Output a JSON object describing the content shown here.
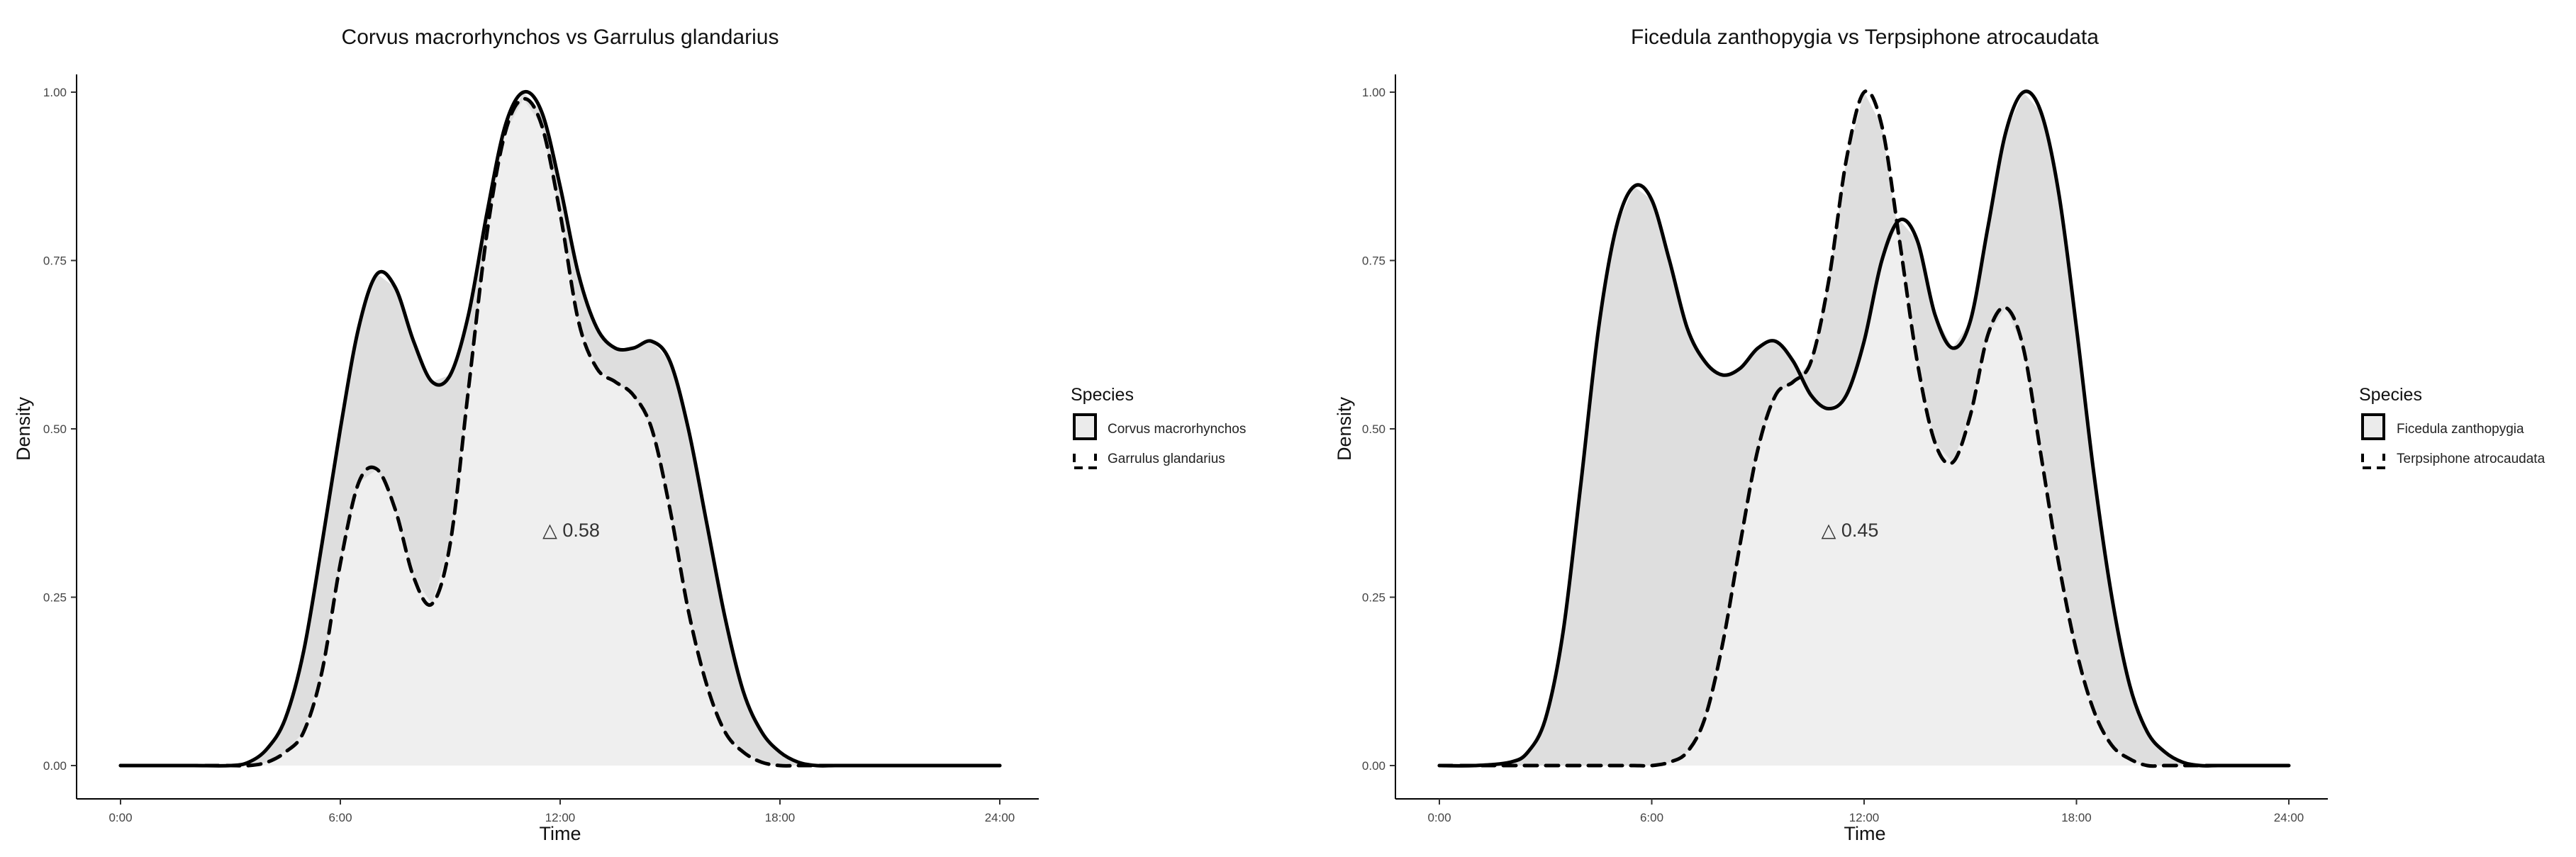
{
  "chart_data": [
    {
      "type": "area",
      "title": "Corvus macrorhynchos vs Garrulus glandarius",
      "xlabel": "Time",
      "ylabel": "Density",
      "xticks": [
        "0:00",
        "6:00",
        "12:00",
        "18:00",
        "24:00"
      ],
      "yticks": [
        "0.00",
        "0.25",
        "0.50",
        "0.75",
        "1.00"
      ],
      "xlim": [
        0,
        24
      ],
      "ylim": [
        0,
        1
      ],
      "legend": {
        "title": "Species",
        "placement": "right",
        "entries": [
          "Corvus macrorhynchos",
          "Garrulus glandarius"
        ]
      },
      "annotation": {
        "text": "△ 0.58",
        "x": 12.3,
        "y": 0.34
      },
      "series": [
        {
          "name": "Corvus macrorhynchos",
          "line": "solid",
          "x": [
            0,
            1,
            2,
            3,
            3.5,
            4,
            4.5,
            5,
            5.5,
            6,
            6.5,
            7,
            7.5,
            8,
            8.5,
            9,
            9.5,
            10,
            10.5,
            11,
            11.5,
            12,
            12.5,
            13,
            13.5,
            14,
            14.5,
            15,
            15.5,
            16,
            16.5,
            17,
            17.5,
            18,
            18.5,
            19,
            19.5,
            20,
            20.5,
            21,
            22,
            23,
            24
          ],
          "y": [
            0.0,
            0.0,
            0.0,
            0.0,
            0.005,
            0.025,
            0.07,
            0.17,
            0.33,
            0.5,
            0.65,
            0.73,
            0.71,
            0.63,
            0.57,
            0.58,
            0.67,
            0.82,
            0.95,
            1.0,
            0.97,
            0.86,
            0.73,
            0.65,
            0.62,
            0.62,
            0.63,
            0.6,
            0.5,
            0.36,
            0.22,
            0.11,
            0.05,
            0.02,
            0.005,
            0.0,
            0.0,
            0.0,
            0.0,
            0.0,
            0.0,
            0.0,
            0.0
          ]
        },
        {
          "name": "Garrulus glandarius",
          "line": "dashed",
          "x": [
            0,
            1,
            2,
            3,
            3.5,
            4,
            4.5,
            5,
            5.5,
            6,
            6.5,
            7,
            7.5,
            8,
            8.5,
            9,
            9.5,
            10,
            10.5,
            11,
            11.5,
            12,
            12.5,
            13,
            13.5,
            14,
            14.5,
            15,
            15.5,
            16,
            16.5,
            17,
            17.5,
            18,
            18.5,
            19,
            19.5,
            20,
            20.5,
            21,
            22,
            23,
            24
          ],
          "y": [
            0.0,
            0.0,
            0.0,
            0.0,
            0.0,
            0.005,
            0.02,
            0.05,
            0.14,
            0.3,
            0.42,
            0.44,
            0.38,
            0.28,
            0.24,
            0.33,
            0.56,
            0.79,
            0.94,
            0.99,
            0.95,
            0.82,
            0.66,
            0.59,
            0.57,
            0.55,
            0.5,
            0.38,
            0.23,
            0.12,
            0.05,
            0.02,
            0.005,
            0.0,
            0.0,
            0.0,
            0.0,
            0.0,
            0.0,
            0.0,
            0.0,
            0.0,
            0.0
          ]
        }
      ]
    },
    {
      "type": "area",
      "title": "Ficedula zanthopygia vs Terpsiphone atrocaudata",
      "xlabel": "Time",
      "ylabel": "Density",
      "xticks": [
        "0:00",
        "6:00",
        "12:00",
        "18:00",
        "24:00"
      ],
      "yticks": [
        "0.00",
        "0.25",
        "0.50",
        "0.75",
        "1.00"
      ],
      "xlim": [
        0,
        24
      ],
      "ylim": [
        0,
        1
      ],
      "legend": {
        "title": "Species",
        "placement": "right",
        "entries": [
          "Ficedula zanthopygia",
          "Terpsiphone atrocaudata"
        ]
      },
      "annotation": {
        "text": "△ 0.45",
        "x": 11.6,
        "y": 0.34
      },
      "series": [
        {
          "name": "Ficedula zanthopygia",
          "line": "solid",
          "x": [
            0,
            1,
            2,
            2.5,
            3,
            3.5,
            4,
            4.5,
            5,
            5.5,
            6,
            6.5,
            7,
            7.5,
            8,
            8.5,
            9,
            9.5,
            10,
            10.5,
            11,
            11.5,
            12,
            12.5,
            13,
            13.5,
            14,
            14.5,
            15,
            15.5,
            16,
            16.5,
            17,
            17.5,
            18,
            18.5,
            19,
            19.5,
            20,
            20.5,
            21,
            21.5,
            22,
            23,
            24
          ],
          "y": [
            0.0,
            0.0,
            0.005,
            0.02,
            0.07,
            0.2,
            0.42,
            0.65,
            0.8,
            0.86,
            0.84,
            0.75,
            0.65,
            0.6,
            0.58,
            0.59,
            0.62,
            0.63,
            0.6,
            0.55,
            0.53,
            0.55,
            0.63,
            0.75,
            0.81,
            0.78,
            0.67,
            0.62,
            0.66,
            0.8,
            0.94,
            1.0,
            0.97,
            0.85,
            0.65,
            0.43,
            0.25,
            0.12,
            0.05,
            0.02,
            0.005,
            0.0,
            0.0,
            0.0,
            0.0
          ]
        },
        {
          "name": "Terpsiphone atrocaudata",
          "line": "dashed",
          "x": [
            0,
            1,
            2,
            2.5,
            3,
            3.5,
            4,
            4.5,
            5,
            5.5,
            6,
            6.5,
            7,
            7.5,
            8,
            8.5,
            9,
            9.5,
            10,
            10.5,
            11,
            11.5,
            12,
            12.5,
            13,
            13.5,
            14,
            14.5,
            15,
            15.5,
            16,
            16.5,
            17,
            17.5,
            18,
            18.5,
            19,
            19.5,
            20,
            20.5,
            21,
            21.5,
            22,
            23,
            24
          ],
          "y": [
            0.0,
            0.0,
            0.0,
            0.0,
            0.0,
            0.0,
            0.0,
            0.0,
            0.0,
            0.0,
            0.0,
            0.005,
            0.02,
            0.07,
            0.18,
            0.33,
            0.47,
            0.55,
            0.57,
            0.6,
            0.72,
            0.9,
            1.0,
            0.95,
            0.78,
            0.6,
            0.48,
            0.45,
            0.52,
            0.64,
            0.68,
            0.62,
            0.46,
            0.3,
            0.17,
            0.08,
            0.03,
            0.01,
            0.0,
            0.0,
            0.0,
            0.0,
            0.0,
            0.0,
            0.0
          ]
        }
      ]
    }
  ]
}
